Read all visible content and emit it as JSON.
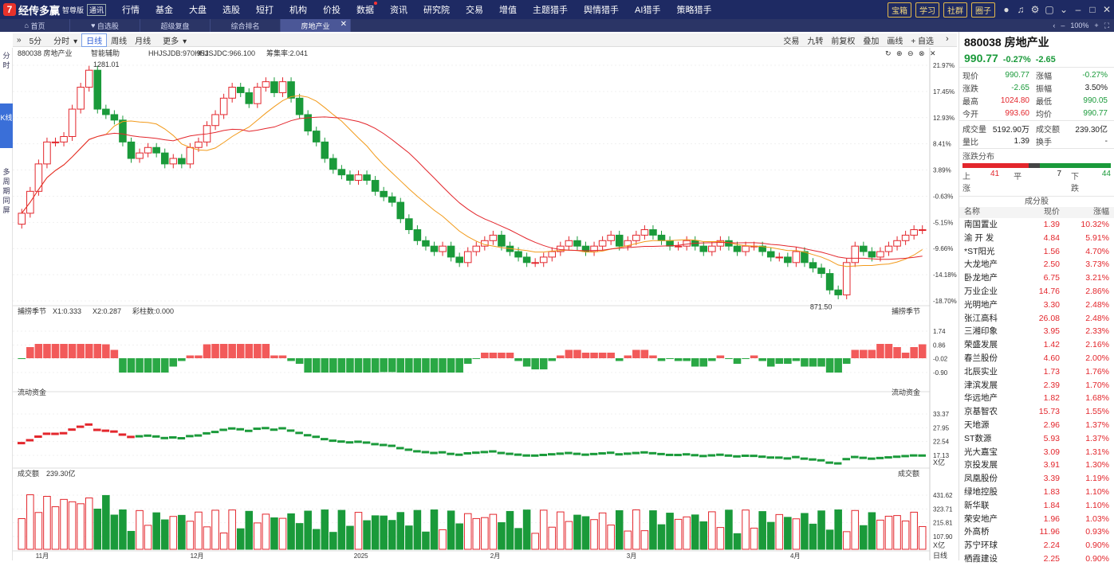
{
  "app": {
    "name": "经传多赢",
    "edition": "智尊版",
    "class_badge": "通讯"
  },
  "top_nav": [
    {
      "label": "行情",
      "dot": false
    },
    {
      "label": "基金",
      "dot": false
    },
    {
      "label": "大盘",
      "dot": false
    },
    {
      "label": "选股",
      "dot": false
    },
    {
      "label": "短打",
      "dot": false
    },
    {
      "label": "机构",
      "dot": false
    },
    {
      "label": "价投",
      "dot": false
    },
    {
      "label": "数据",
      "dot": true
    },
    {
      "label": "资讯",
      "dot": false
    },
    {
      "label": "研究院",
      "dot": false
    },
    {
      "label": "交易",
      "dot": false
    },
    {
      "label": "增值",
      "dot": false
    },
    {
      "label": "主题猎手",
      "dot": false
    },
    {
      "label": "舆情猎手",
      "dot": false
    },
    {
      "label": "AI猎手",
      "dot": false
    },
    {
      "label": "策略猎手",
      "dot": false
    }
  ],
  "top_buttons": [
    "宝箱",
    "学习",
    "社群",
    "圈子"
  ],
  "tabs": [
    {
      "label": "首页",
      "icon": "home"
    },
    {
      "label": "自选股",
      "icon": "heart"
    },
    {
      "label": "超级复盘",
      "icon": ""
    },
    {
      "label": "综合排名",
      "icon": ""
    },
    {
      "label": "房地产业",
      "icon": "",
      "active": true
    }
  ],
  "zoom": "100%",
  "left_side": [
    {
      "label": "分时",
      "active": false
    },
    {
      "label": "K线",
      "active": true
    },
    {
      "label": "多周期同屏",
      "active": false
    }
  ],
  "period_bar": {
    "items": [
      "5分",
      "分时",
      "日线",
      "周线",
      "月线",
      "更多"
    ],
    "selected": "日线",
    "right_items": [
      "交易",
      "九转",
      "前复权",
      "叠加",
      "画线",
      "+ 自选"
    ]
  },
  "main_chart": {
    "title": "880038 房地产业",
    "assist": "智能辅助",
    "indicators": [
      {
        "label": "HHJSJDB:970.951",
        "color": "#f29a1a"
      },
      {
        "label": "HHJSJDC:966.100",
        "color": "#e3262c"
      },
      {
        "label": "筹集率:2.041",
        "color": "#e37a1a"
      }
    ],
    "y_labels": [
      "21.97%",
      "17.45%",
      "12.93%",
      "8.41%",
      "3.89%",
      "-0.63%",
      "-5.15%",
      "-9.66%",
      "-14.18%",
      "-18.70%"
    ],
    "high_label": "1281.01",
    "low_label": "871.50"
  },
  "panel2": {
    "title": "捕捞季节",
    "x1": "X1:0.333",
    "x2": "X2:0.287",
    "bar": "彩柱数:0.000",
    "right_title": "捕捞季节",
    "y_labels": [
      "1.74",
      "0.86",
      "-0.02",
      "-0.90"
    ]
  },
  "panel3": {
    "title": "流动资金",
    "right_title": "流动资金",
    "y_labels": [
      "33.37",
      "27.95",
      "22.54",
      "17.13"
    ],
    "unit": "X亿"
  },
  "panel4": {
    "title": "成交额",
    "value": "239.30亿",
    "right_title": "成交额",
    "y_labels": [
      "431.62",
      "323.71",
      "215.81",
      "107.90"
    ],
    "unit": "X亿"
  },
  "x_labels": [
    "11月",
    "12月",
    "2025",
    "2月",
    "3月",
    "4月"
  ],
  "x_right_label": "日线",
  "quote": {
    "title": "880038 房地产业",
    "price": "990.77",
    "change_pct": "-0.27%",
    "change": "-2.65",
    "rows": [
      {
        "l": "现价",
        "v": "990.77",
        "vc": "green",
        "l2": "涨幅",
        "v2": "-0.27%",
        "v2c": "green"
      },
      {
        "l": "涨跌",
        "v": "-2.65",
        "vc": "green",
        "l2": "振幅",
        "v2": "3.50%",
        "v2c": ""
      },
      {
        "l": "最高",
        "v": "1024.80",
        "vc": "red",
        "l2": "最低",
        "v2": "990.05",
        "v2c": "green"
      },
      {
        "l": "今开",
        "v": "993.60",
        "vc": "red",
        "l2": "均价",
        "v2": "990.77",
        "v2c": "green"
      }
    ],
    "rows2": [
      {
        "l": "成交量",
        "v": "5192.90万",
        "vc": "",
        "l2": "成交额",
        "v2": "239.30亿",
        "v2c": ""
      },
      {
        "l": "量比",
        "v": "1.39",
        "vc": "",
        "l2": "换手",
        "v2": "-",
        "v2c": ""
      }
    ],
    "dist_title": "涨跌分布",
    "up_label": "上涨",
    "up": "41",
    "flat_label": "平",
    "flat": "7",
    "down_label": "下跌",
    "down": "44",
    "cons_title": "成分股",
    "cons_headers": [
      "名称",
      "现价",
      "涨幅"
    ],
    "constituents": [
      {
        "name": "南国置业",
        "price": "1.39",
        "pct": "10.32%"
      },
      {
        "name": "渝 开 发",
        "price": "4.84",
        "pct": "5.91%"
      },
      {
        "name": "*ST阳光",
        "price": "1.56",
        "pct": "4.70%"
      },
      {
        "name": "大龙地产",
        "price": "2.50",
        "pct": "3.73%",
        "hl": true
      },
      {
        "name": "卧龙地产",
        "price": "6.75",
        "pct": "3.21%"
      },
      {
        "name": "万业企业",
        "price": "14.76",
        "pct": "2.86%"
      },
      {
        "name": "光明地产",
        "price": "3.30",
        "pct": "2.48%"
      },
      {
        "name": "张江高科",
        "price": "26.08",
        "pct": "2.48%"
      },
      {
        "name": "三湘印象",
        "price": "3.95",
        "pct": "2.33%"
      },
      {
        "name": "荣盛发展",
        "price": "1.42",
        "pct": "2.16%"
      },
      {
        "name": "春兰股份",
        "price": "4.60",
        "pct": "2.00%"
      },
      {
        "name": "北辰实业",
        "price": "1.73",
        "pct": "1.76%"
      },
      {
        "name": "津滨发展",
        "price": "2.39",
        "pct": "1.70%"
      },
      {
        "name": "华远地产",
        "price": "1.82",
        "pct": "1.68%"
      },
      {
        "name": "京基智农",
        "price": "15.73",
        "pct": "1.55%"
      },
      {
        "name": "天地源",
        "price": "2.96",
        "pct": "1.37%"
      },
      {
        "name": "ST数源",
        "price": "5.93",
        "pct": "1.37%"
      },
      {
        "name": "光大嘉宝",
        "price": "3.09",
        "pct": "1.31%"
      },
      {
        "name": "京投发展",
        "price": "3.91",
        "pct": "1.30%"
      },
      {
        "name": "凤凰股份",
        "price": "3.39",
        "pct": "1.19%"
      },
      {
        "name": "绿地控股",
        "price": "1.83",
        "pct": "1.10%"
      },
      {
        "name": "新华联",
        "price": "1.84",
        "pct": "1.10%"
      },
      {
        "name": "荣安地产",
        "price": "1.96",
        "pct": "1.03%"
      },
      {
        "name": "外高桥",
        "price": "11.96",
        "pct": "0.93%"
      },
      {
        "name": "苏宁环球",
        "price": "2.24",
        "pct": "0.90%"
      },
      {
        "name": "栖霞建设",
        "price": "2.25",
        "pct": "0.90%"
      }
    ]
  },
  "chart_data": {
    "type": "candlestick",
    "x_tick_labels": [
      "11月",
      "12月",
      "2025",
      "2月",
      "3月",
      "4月"
    ],
    "close_series": [
      1020,
      1060,
      1110,
      1150,
      1150,
      1160,
      1210,
      1250,
      1281,
      1210,
      1200,
      1190,
      1150,
      1120,
      1130,
      1140,
      1130,
      1110,
      1120,
      1110,
      1140,
      1150,
      1180,
      1200,
      1230,
      1250,
      1240,
      1220,
      1250,
      1260,
      1240,
      1260,
      1230,
      1200,
      1170,
      1150,
      1120,
      1100,
      1090,
      1080,
      1090,
      1080,
      1060,
      1050,
      1040,
      1010,
      990,
      970,
      960,
      950,
      960,
      940,
      930,
      950,
      960,
      970,
      980,
      960,
      950,
      940,
      930,
      930,
      940,
      950,
      960,
      970,
      960,
      950,
      960,
      970,
      980,
      960,
      970,
      980,
      990,
      980,
      970,
      960,
      960,
      970,
      960,
      950,
      960,
      970,
      960,
      950,
      960,
      960,
      950,
      940,
      940,
      930,
      950,
      930,
      920,
      910,
      880,
      871,
      930,
      960,
      950,
      940,
      950,
      960,
      970,
      980,
      990,
      990
    ],
    "ma_note": "two moving averages (orange, red)"
  }
}
